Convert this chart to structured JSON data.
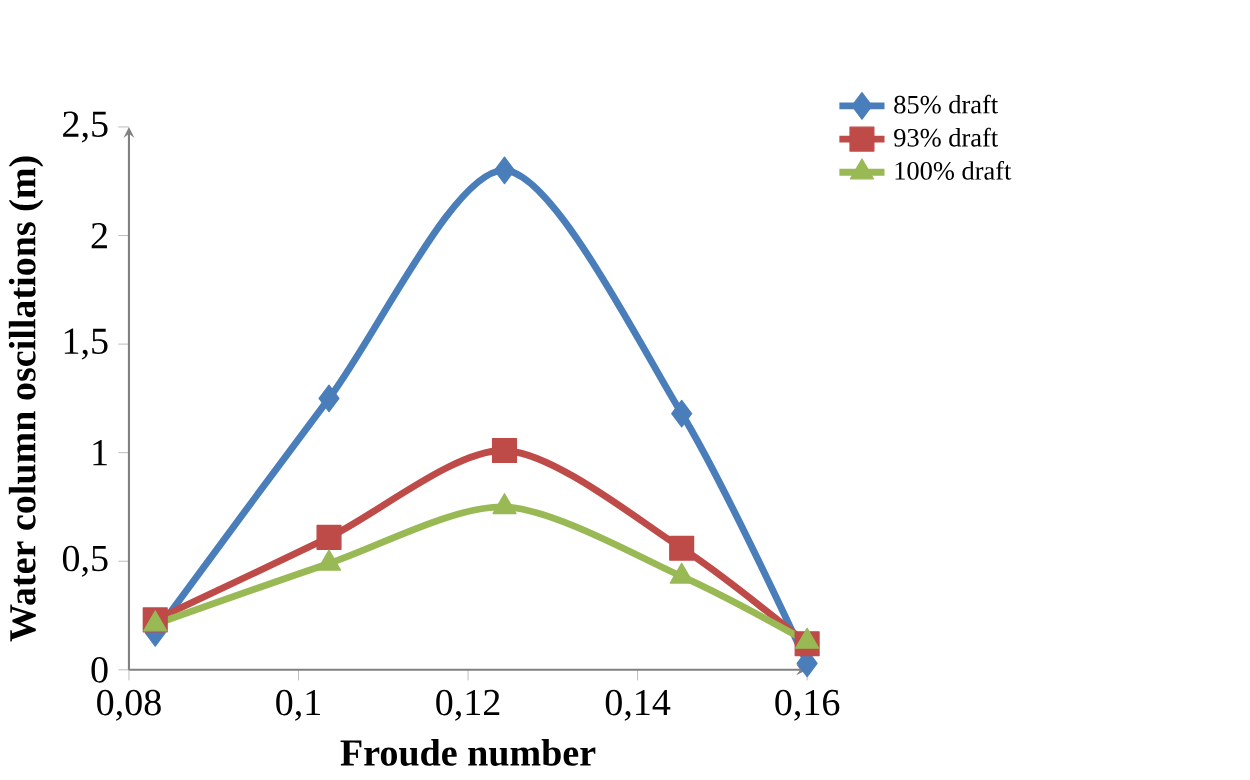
{
  "chart_data": {
    "type": "line",
    "xlabel": "Froude number",
    "ylabel": "Water column oscillations (m)",
    "x": [
      0.0831,
      0.1036,
      0.1243,
      0.1452,
      0.16
    ],
    "series": [
      {
        "name": "85%  draft",
        "color": "#4a7ebb",
        "marker": "diamond",
        "values": [
          0.17,
          1.25,
          2.3,
          1.18,
          0.03
        ]
      },
      {
        "name": "93%  draft",
        "color": "#be4b48",
        "marker": "square",
        "values": [
          0.23,
          0.61,
          1.01,
          0.56,
          0.12
        ]
      },
      {
        "name": "100%  draft",
        "color": "#98b954",
        "marker": "triangle",
        "values": [
          0.21,
          0.49,
          0.75,
          0.43,
          0.13
        ]
      }
    ],
    "xlim": [
      0.08,
      0.16
    ],
    "xticks": [
      {
        "value": 0.08,
        "label": "0,08"
      },
      {
        "value": 0.1,
        "label": "0,1"
      },
      {
        "value": 0.12,
        "label": "0,12"
      },
      {
        "value": 0.14,
        "label": "0,14"
      },
      {
        "value": 0.16,
        "label": "0,16"
      }
    ],
    "ylim": [
      0,
      2.5
    ],
    "yticks": [
      0,
      {
        "value": 0.5,
        "label": "0,5"
      },
      1,
      {
        "value": 1.5,
        "label": "1,5"
      },
      2,
      {
        "value": 2.5,
        "label": "2,5"
      }
    ],
    "grid": false,
    "legend": "top right",
    "line_style": "solid"
  }
}
